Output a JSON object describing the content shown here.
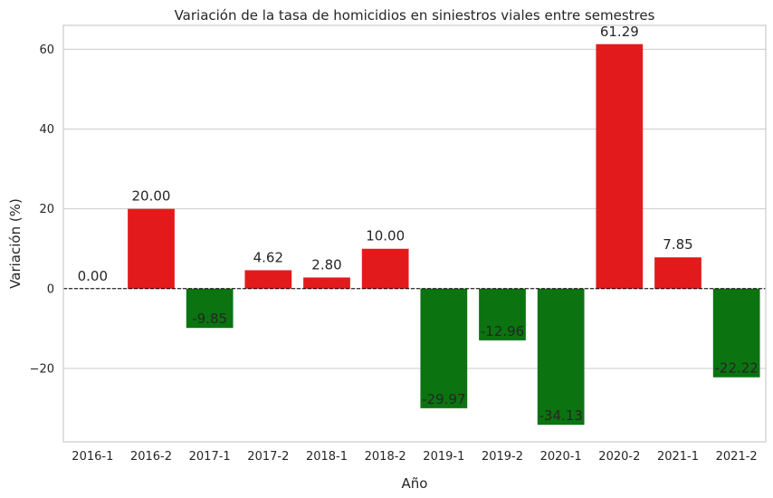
{
  "chart_data": {
    "type": "bar",
    "title": "Variación de la tasa de homicidios en siniestros viales entre semestres",
    "xlabel": "Año",
    "ylabel": "Variación (%)",
    "categories": [
      "2016-1",
      "2016-2",
      "2017-1",
      "2017-2",
      "2018-1",
      "2018-2",
      "2019-1",
      "2019-2",
      "2020-1",
      "2020-2",
      "2021-1",
      "2021-2"
    ],
    "values": [
      0.0,
      20.0,
      -9.85,
      4.62,
      2.8,
      10.0,
      -29.97,
      -12.96,
      -34.13,
      61.29,
      7.85,
      -22.22
    ],
    "data_labels": [
      "0.00",
      "20.00",
      "-9.85",
      "4.62",
      "2.80",
      "10.00",
      "-29.97",
      "-12.96",
      "-34.13",
      "61.29",
      "7.85",
      "-22.22"
    ],
    "yticks": [
      -20,
      0,
      20,
      40,
      60
    ],
    "ytick_labels": [
      "−20",
      "0",
      "20",
      "40",
      "60"
    ],
    "ylim": [
      -38.4,
      66.0
    ],
    "grid": "horizontal",
    "reference_line": 0,
    "colors": {
      "increase": "#e31a1c",
      "decrease": "#0b7310",
      "grid": "#cccccc",
      "axes": "#cccccc",
      "text": "#262626",
      "reference_line": "#000000"
    }
  }
}
